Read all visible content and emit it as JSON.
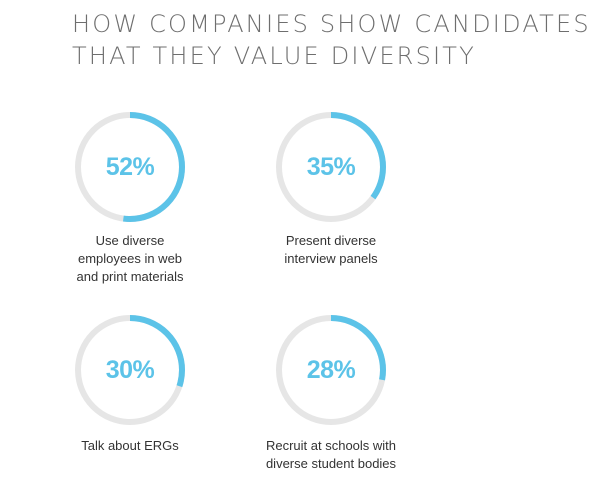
{
  "title_lines": [
    "HOW COMPANIES SHOW CANDIDATES",
    "THAT THEY VALUE DIVERSITY"
  ],
  "colors": {
    "accent": "#5cc3e8",
    "track": "#e6e6e6",
    "title": "#6e6e6e",
    "caption": "#333333"
  },
  "chart_data": {
    "type": "pie",
    "title": "HOW COMPANIES SHOW CANDIDATES THAT THEY VALUE DIVERSITY",
    "unit": "%",
    "items": [
      {
        "value": 52,
        "value_label": "52%",
        "label_lines": [
          "Use diverse",
          "employees in web",
          "and print materials"
        ]
      },
      {
        "value": 35,
        "value_label": "35%",
        "label_lines": [
          "Present diverse",
          "interview panels"
        ]
      },
      {
        "value": 30,
        "value_label": "30%",
        "label_lines": [
          "Talk about ERGs"
        ]
      },
      {
        "value": 28,
        "value_label": "28%",
        "label_lines": [
          "Recruit at schools with",
          "diverse student bodies"
        ]
      }
    ]
  }
}
